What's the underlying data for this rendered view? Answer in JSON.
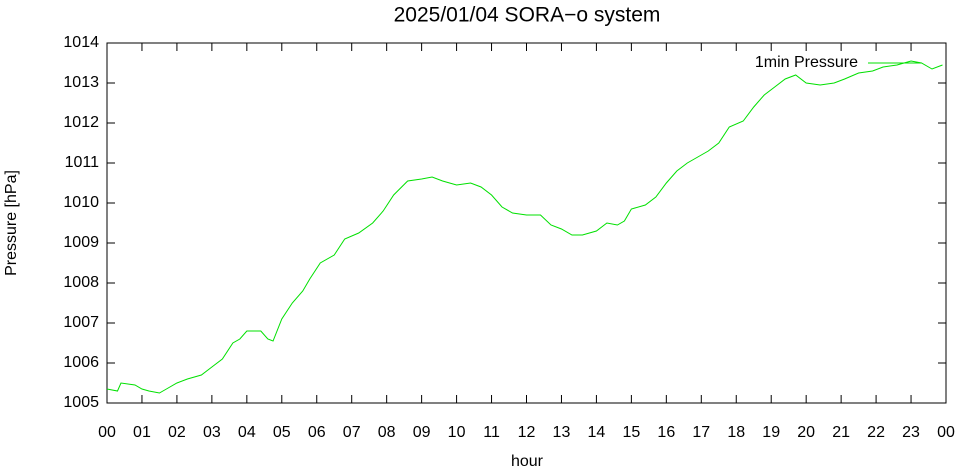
{
  "chart_data": {
    "type": "line",
    "title": "2025/01/04 SORA−o system",
    "xlabel": "hour",
    "ylabel": "Pressure [hPa]",
    "xlim": [
      0,
      24
    ],
    "xticks": [
      {
        "value": 0,
        "label": "00"
      },
      {
        "value": 1,
        "label": "01"
      },
      {
        "value": 2,
        "label": "02"
      },
      {
        "value": 3,
        "label": "03"
      },
      {
        "value": 4,
        "label": "04"
      },
      {
        "value": 5,
        "label": "05"
      },
      {
        "value": 6,
        "label": "06"
      },
      {
        "value": 7,
        "label": "07"
      },
      {
        "value": 8,
        "label": "08"
      },
      {
        "value": 9,
        "label": "09"
      },
      {
        "value": 10,
        "label": "10"
      },
      {
        "value": 11,
        "label": "11"
      },
      {
        "value": 12,
        "label": "12"
      },
      {
        "value": 13,
        "label": "13"
      },
      {
        "value": 14,
        "label": "14"
      },
      {
        "value": 15,
        "label": "15"
      },
      {
        "value": 16,
        "label": "16"
      },
      {
        "value": 17,
        "label": "17"
      },
      {
        "value": 18,
        "label": "18"
      },
      {
        "value": 19,
        "label": "19"
      },
      {
        "value": 20,
        "label": "20"
      },
      {
        "value": 21,
        "label": "21"
      },
      {
        "value": 22,
        "label": "22"
      },
      {
        "value": 23,
        "label": "23"
      },
      {
        "value": 24,
        "label": "00"
      }
    ],
    "ylim": [
      1005,
      1014
    ],
    "yticks": [
      1005,
      1006,
      1007,
      1008,
      1009,
      1010,
      1011,
      1012,
      1013,
      1014
    ],
    "legend": "top-right",
    "x": [
      0,
      0.3,
      0.4,
      0.8,
      1.0,
      1.2,
      1.5,
      1.7,
      2.0,
      2.3,
      2.7,
      3.0,
      3.3,
      3.6,
      3.8,
      4.0,
      4.4,
      4.6,
      4.75,
      5.0,
      5.3,
      5.6,
      5.8,
      6.1,
      6.5,
      6.8,
      7.2,
      7.6,
      7.9,
      8.2,
      8.6,
      9.0,
      9.3,
      9.6,
      10.0,
      10.4,
      10.7,
      11.0,
      11.3,
      11.6,
      12.0,
      12.4,
      12.7,
      13.0,
      13.3,
      13.6,
      14.0,
      14.3,
      14.6,
      14.8,
      15.0,
      15.4,
      15.7,
      16.0,
      16.3,
      16.6,
      16.9,
      17.2,
      17.5,
      17.8,
      18.2,
      18.5,
      18.8,
      19.1,
      19.4,
      19.7,
      20.0,
      20.4,
      20.8,
      21.1,
      21.5,
      21.9,
      22.2,
      22.6,
      23.0,
      23.3,
      23.6,
      23.9
    ],
    "series": [
      {
        "name": "1min Pressure",
        "color": "#00e000",
        "values": [
          1005.35,
          1005.3,
          1005.5,
          1005.45,
          1005.35,
          1005.3,
          1005.25,
          1005.35,
          1005.5,
          1005.6,
          1005.7,
          1005.9,
          1006.1,
          1006.5,
          1006.6,
          1006.8,
          1006.8,
          1006.6,
          1006.55,
          1007.1,
          1007.5,
          1007.8,
          1008.1,
          1008.5,
          1008.7,
          1009.1,
          1009.25,
          1009.5,
          1009.8,
          1010.2,
          1010.55,
          1010.6,
          1010.65,
          1010.55,
          1010.45,
          1010.5,
          1010.4,
          1010.2,
          1009.9,
          1009.75,
          1009.7,
          1009.7,
          1009.45,
          1009.35,
          1009.2,
          1009.2,
          1009.3,
          1009.5,
          1009.45,
          1009.55,
          1009.85,
          1009.95,
          1010.15,
          1010.5,
          1010.8,
          1011.0,
          1011.15,
          1011.3,
          1011.5,
          1011.9,
          1012.05,
          1012.4,
          1012.7,
          1012.9,
          1013.1,
          1013.2,
          1013.0,
          1012.95,
          1013.0,
          1013.1,
          1013.25,
          1013.3,
          1013.4,
          1013.45,
          1013.55,
          1013.5,
          1013.35,
          1013.45
        ]
      }
    ]
  }
}
